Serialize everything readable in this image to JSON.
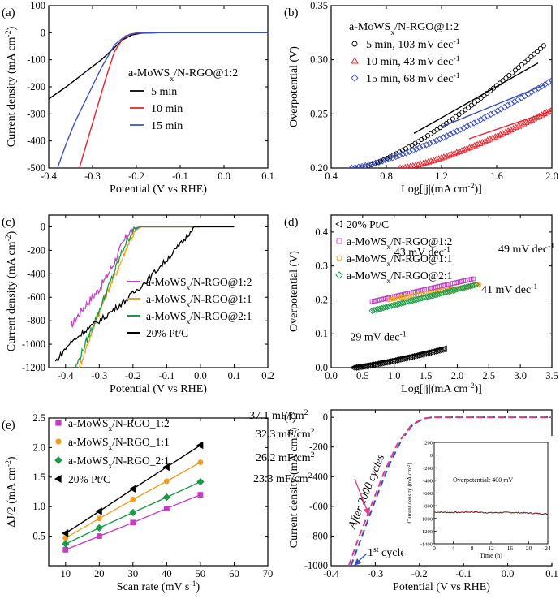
{
  "figure": {
    "type": "multi-panel",
    "colors": {
      "black": "#000000",
      "red": "#e8202a",
      "blue": "#3a4fc4",
      "magenta": "#c43fc4",
      "orange": "#f0a020",
      "green": "#1a9a48",
      "pink": "#e0408a",
      "darkred": "#7a1f1f"
    }
  },
  "chart_data": [
    {
      "id": "a",
      "panel_label": "(a)",
      "type": "line",
      "xlabel": "Potential (V vs RHE)",
      "ylabel": "Current density (mA cm⁻²)",
      "xlim": [
        -0.4,
        0.1
      ],
      "ylim": [
        -500,
        100
      ],
      "xticks": [
        "-0.4",
        "-0.3",
        "-0.2",
        "-0.1",
        "0.0",
        "0.1"
      ],
      "yticks": [
        "100",
        "0",
        "-100",
        "-200",
        "-300",
        "-400",
        "-500"
      ],
      "legend_title": "a-MoWSx/N-RGO@1:2",
      "series": [
        {
          "name": "5 min",
          "color": "#000000",
          "x": [
            -0.4,
            -0.36,
            -0.32,
            -0.28,
            -0.25,
            -0.23,
            -0.21,
            -0.19,
            -0.15,
            0.1
          ],
          "y": [
            -245,
            -200,
            -150,
            -100,
            -55,
            -25,
            -8,
            -2,
            0,
            0
          ]
        },
        {
          "name": "10 min",
          "color": "#e8202a",
          "x": [
            -0.33,
            -0.31,
            -0.29,
            -0.27,
            -0.25,
            -0.23,
            -0.215,
            -0.2,
            -0.15,
            0.1
          ],
          "y": [
            -500,
            -390,
            -280,
            -170,
            -70,
            -20,
            -6,
            -1,
            0,
            0
          ]
        },
        {
          "name": "15 min",
          "color": "#3a4fc4",
          "x": [
            -0.38,
            -0.36,
            -0.34,
            -0.31,
            -0.28,
            -0.25,
            -0.225,
            -0.2,
            -0.15,
            0.1
          ],
          "y": [
            -500,
            -410,
            -330,
            -230,
            -130,
            -45,
            -12,
            -2,
            0,
            0
          ]
        }
      ]
    },
    {
      "id": "b",
      "panel_label": "(b)",
      "type": "scatter",
      "xlabel": "Log[|j|(mA cm⁻²)]",
      "ylabel": "Overpotential (V)",
      "xlim": [
        0.4,
        2.0
      ],
      "ylim": [
        0.2,
        0.35
      ],
      "xticks": [
        "0.4",
        "0.8",
        "1.2",
        "1.6",
        "2.0"
      ],
      "yticks": [
        "0.35",
        "0.30",
        "0.25",
        "0.20"
      ],
      "legend_title": "a-MoWSx/N-RGO@1:2",
      "series": [
        {
          "name": "5 min, 103 mV dec⁻¹",
          "color": "#000000",
          "marker": "circle",
          "x": [
            0.6,
            1.94
          ],
          "y": [
            0.2,
            0.313
          ],
          "fit": [
            [
              1.0,
              0.232
            ],
            [
              1.9,
              0.297
            ]
          ]
        },
        {
          "name": "10 min, 43 mV dec⁻¹",
          "color": "#e8202a",
          "marker": "triangle",
          "x": [
            0.9,
            2.0
          ],
          "y": [
            0.2,
            0.254
          ],
          "fit": [
            [
              1.4,
              0.227
            ],
            [
              2.0,
              0.253
            ]
          ]
        },
        {
          "name": "15 min, 68 mV dec⁻¹",
          "color": "#3a4fc4",
          "marker": "diamond",
          "x": [
            0.55,
            2.0
          ],
          "y": [
            0.2,
            0.281
          ],
          "fit": [
            [
              1.2,
              0.238
            ],
            [
              1.95,
              0.277
            ]
          ]
        }
      ]
    },
    {
      "id": "c",
      "panel_label": "(c)",
      "type": "line",
      "xlabel": "Potential (V vs RHE)",
      "ylabel": "Current density (mA cm⁻²)",
      "xlim": [
        -0.45,
        0.2
      ],
      "ylim": [
        -1200,
        100
      ],
      "xticks": [
        "-0.4",
        "-0.3",
        "-0.2",
        "-0.1",
        "0.0",
        "0.1",
        "0.2"
      ],
      "yticks": [
        "0",
        "-200",
        "-400",
        "-600",
        "-800",
        "-1000",
        "-1200"
      ],
      "series": [
        {
          "name": "a-MoWSx/N-RGO@1:2",
          "color": "#c43fc4",
          "x": [
            -0.385,
            -0.35,
            -0.3,
            -0.26,
            -0.235,
            -0.215,
            -0.2,
            -0.18,
            0.0
          ],
          "y": [
            -850,
            -700,
            -530,
            -330,
            -170,
            -60,
            -15,
            0,
            0
          ]
        },
        {
          "name": "a-MoWSx/N-RGO@1:1",
          "color": "#f0a020",
          "x": [
            -0.36,
            -0.32,
            -0.28,
            -0.24,
            -0.21,
            -0.19,
            -0.175,
            0.0
          ],
          "y": [
            -1200,
            -880,
            -580,
            -330,
            -120,
            -25,
            0,
            0
          ]
        },
        {
          "name": "a-MoWSx/N-RGO@2:1",
          "color": "#1a9a48",
          "x": [
            -0.37,
            -0.33,
            -0.29,
            -0.255,
            -0.225,
            -0.2,
            -0.18,
            0.0
          ],
          "y": [
            -1200,
            -920,
            -640,
            -380,
            -160,
            -35,
            0,
            0
          ]
        },
        {
          "name": "20% Pt/C",
          "color": "#000000",
          "x": [
            -0.43,
            -0.39,
            -0.34,
            -0.28,
            -0.22,
            -0.16,
            -0.1,
            -0.05,
            -0.02,
            0.1
          ],
          "y": [
            -1150,
            -1000,
            -880,
            -760,
            -620,
            -460,
            -280,
            -120,
            0,
            0
          ]
        }
      ]
    },
    {
      "id": "d",
      "panel_label": "(d)",
      "type": "scatter",
      "xlabel": "Log[|j|(mA cm⁻²)]",
      "ylabel": "Overpotential (V)",
      "xlim": [
        0.0,
        3.5
      ],
      "ylim": [
        0.0,
        0.45
      ],
      "xticks": [
        "0.0",
        "0.5",
        "1.0",
        "1.5",
        "2.0",
        "2.5",
        "3.0",
        "3.5"
      ],
      "yticks": [
        "0.4",
        "0.3",
        "0.2",
        "0.1",
        "0.0"
      ],
      "series": [
        {
          "name": "20% Pt/C",
          "color": "#000000",
          "marker": "triangle-left",
          "x": [
            0.35,
            1.8
          ],
          "y": [
            0.0,
            0.056
          ],
          "tafel": "29 mV dec⁻¹"
        },
        {
          "name": "a-MoWSx/N-RGO@1:2",
          "color": "#c43fc4",
          "marker": "square",
          "x": [
            0.65,
            2.25
          ],
          "y": [
            0.195,
            0.262
          ],
          "tafel": "43 mV dec⁻¹"
        },
        {
          "name": "a-MoWSx/N-RGO@1:1",
          "color": "#f0a020",
          "marker": "circle",
          "x": [
            0.9,
            2.35
          ],
          "y": [
            0.2,
            0.245
          ],
          "tafel": "41 mV dec⁻¹"
        },
        {
          "name": "a-MoWSx/N-RGO@2:1",
          "color": "#1a9a48",
          "marker": "diamond",
          "x": [
            0.65,
            2.3
          ],
          "y": [
            0.168,
            0.245
          ],
          "tafel": "49 mV dec⁻¹"
        }
      ]
    },
    {
      "id": "e",
      "panel_label": "(e)",
      "type": "scatter",
      "xlabel": "Scan rate (mV s⁻¹)",
      "ylabel": "ΔJ/2 (mA cm⁻²)",
      "xlim": [
        5,
        70
      ],
      "ylim": [
        0.0,
        2.5
      ],
      "xticks": [
        "10",
        "20",
        "30",
        "40",
        "50",
        "60",
        "70"
      ],
      "yticks": [
        "2.5",
        "2.0",
        "1.5",
        "1.0",
        "0.5"
      ],
      "series": [
        {
          "name": "a-MoWSx/N-RGO_1:2",
          "color": "#c43fc4",
          "marker": "square",
          "x": [
            10,
            20,
            30,
            40,
            50
          ],
          "y": [
            0.27,
            0.5,
            0.73,
            0.97,
            1.2
          ],
          "label": "23.3 mF/cm²"
        },
        {
          "name": "a-MoWSx/N-RGO_1:1",
          "color": "#f0a020",
          "marker": "circle",
          "x": [
            10,
            20,
            30,
            40,
            50
          ],
          "y": [
            0.47,
            0.8,
            1.12,
            1.43,
            1.75
          ],
          "label": "32.3 mF/cm²"
        },
        {
          "name": "a-MoWSx/N-RGO_2:1",
          "color": "#1a9a48",
          "marker": "diamond",
          "x": [
            10,
            20,
            30,
            40,
            50
          ],
          "y": [
            0.37,
            0.64,
            0.9,
            1.16,
            1.42
          ],
          "label": "26.2 mF/cm²"
        },
        {
          "name": "20% Pt/C",
          "color": "#000000",
          "marker": "triangle-left",
          "x": [
            10,
            20,
            30,
            40,
            50
          ],
          "y": [
            0.55,
            0.92,
            1.3,
            1.67,
            2.04
          ],
          "label": "37.1 mF/cm²"
        }
      ]
    },
    {
      "id": "f",
      "panel_label": "(f)",
      "type": "line",
      "xlabel": "Potential (V vs RHE)",
      "ylabel": "Current density (mA cm⁻²)",
      "xlim": [
        -0.4,
        0.1
      ],
      "ylim": [
        -1000,
        50
      ],
      "xticks": [
        "-0.4",
        "-0.3",
        "-0.2",
        "-0.1",
        "0.0",
        "0.1"
      ],
      "yticks": [
        "0",
        "-200",
        "-400",
        "-600",
        "-800",
        "-1000"
      ],
      "annotations": {
        "cycle1": "1st cycle",
        "cycle2000": "After 2000 cycles"
      },
      "series": [
        {
          "name": "1st cycle",
          "color": "#3a4fc4",
          "style": "dashed",
          "x": [
            -0.355,
            -0.33,
            -0.3,
            -0.27,
            -0.24,
            -0.215,
            -0.19,
            -0.17,
            0.1
          ],
          "y": [
            -1000,
            -800,
            -560,
            -330,
            -150,
            -50,
            -8,
            0,
            0
          ]
        },
        {
          "name": "After 2000 cycles",
          "color": "#e0408a",
          "style": "dashed",
          "x": [
            -0.36,
            -0.34,
            -0.31,
            -0.28,
            -0.25,
            -0.22,
            -0.195,
            -0.17,
            0.1
          ],
          "y": [
            -1000,
            -830,
            -600,
            -370,
            -180,
            -60,
            -10,
            0,
            0
          ]
        }
      ],
      "inset": {
        "xlabel": "Time (h)",
        "ylabel": "Current density (mA cm⁻²)",
        "annotation": "Overpotential: 400 mV",
        "xlim": [
          0,
          24
        ],
        "ylim": [
          -1400,
          200
        ],
        "xticks": [
          "0",
          "4",
          "8",
          "12",
          "16",
          "20",
          "24"
        ],
        "yticks": [
          "200",
          "0",
          "-200",
          "-400",
          "-600",
          "-800",
          "-1000",
          "-1200",
          "-1400"
        ],
        "color": "#7a1f1f",
        "x": [
          0,
          4,
          8,
          12,
          16,
          20,
          24
        ],
        "y": [
          -900,
          -905,
          -898,
          -910,
          -905,
          -915,
          -930
        ]
      }
    }
  ],
  "legend_labels": {
    "a_title_base": "a-MoWS",
    "a_title_sub": "x",
    "a_title_rest": "/N-RGO@1:2",
    "c_base": "a-MoWS",
    "c_sub": "x",
    "d_base": "a-MoWS",
    "d_sub": "x",
    "e_base": "a-MoWS",
    "e_sub": "x"
  }
}
